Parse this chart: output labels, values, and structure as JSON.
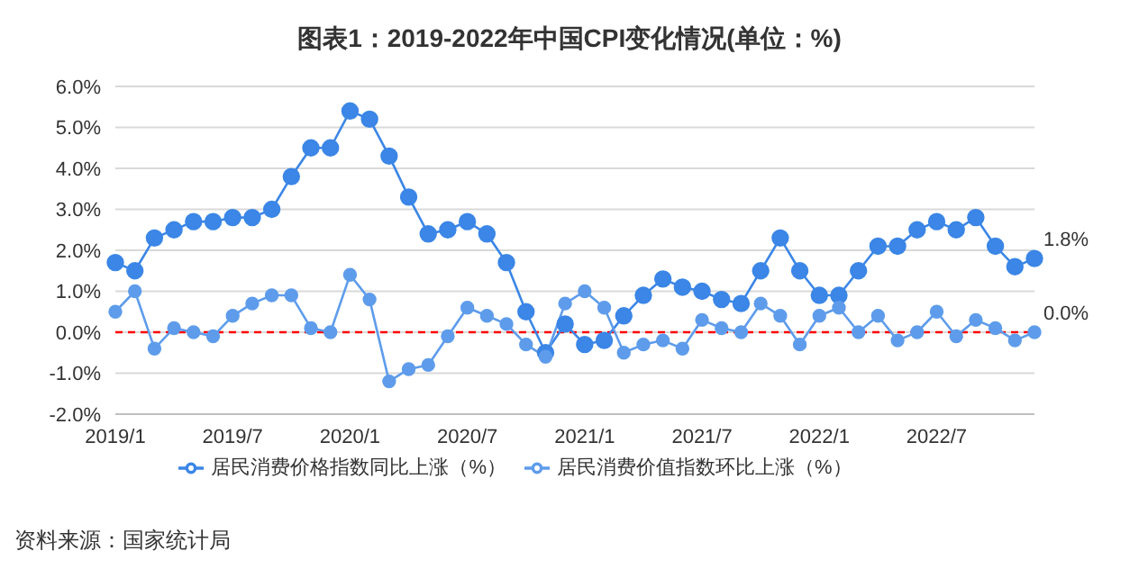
{
  "chart_data": {
    "type": "line",
    "title": "图表1：2019-2022年中国CPI变化情况(单位：%)",
    "categories": [
      "2019/1",
      null,
      null,
      null,
      null,
      null,
      "2019/7",
      null,
      null,
      null,
      null,
      null,
      "2020/1",
      null,
      null,
      null,
      null,
      null,
      "2020/7",
      null,
      null,
      null,
      null,
      null,
      "2021/1",
      null,
      null,
      null,
      null,
      null,
      "2021/7",
      null,
      null,
      null,
      null,
      null,
      "2022/1",
      null,
      null,
      null,
      null,
      null,
      "2022/7",
      null,
      null,
      null,
      null,
      null
    ],
    "series": [
      {
        "name": "居民消费价格指数同比上涨（%）",
        "color": "#3b86e6",
        "values": [
          1.7,
          1.5,
          2.3,
          2.5,
          2.7,
          2.7,
          2.8,
          2.8,
          3.0,
          3.8,
          4.5,
          4.5,
          5.4,
          5.2,
          4.3,
          3.3,
          2.4,
          2.5,
          2.7,
          2.4,
          1.7,
          0.5,
          -0.5,
          0.2,
          -0.3,
          -0.2,
          0.4,
          0.9,
          1.3,
          1.1,
          1.0,
          0.8,
          0.7,
          1.5,
          2.3,
          1.5,
          0.9,
          0.9,
          1.5,
          2.1,
          2.1,
          2.5,
          2.7,
          2.5,
          2.8,
          2.1,
          1.6,
          1.8
        ],
        "value_labels": [
          null,
          null,
          null,
          null,
          null,
          null,
          null,
          null,
          null,
          null,
          null,
          null,
          null,
          null,
          null,
          null,
          null,
          null,
          null,
          null,
          null,
          null,
          null,
          null,
          null,
          null,
          null,
          null,
          null,
          null,
          null,
          null,
          null,
          null,
          null,
          null,
          null,
          null,
          null,
          null,
          null,
          null,
          null,
          null,
          null,
          null,
          null,
          "1.8%"
        ]
      },
      {
        "name": "居民消费价值指数环比上涨（%）",
        "color": "#5e9ceb",
        "values": [
          0.5,
          1.0,
          -0.4,
          0.1,
          0.0,
          -0.1,
          0.4,
          0.7,
          0.9,
          0.9,
          0.1,
          0.0,
          1.4,
          0.8,
          -1.2,
          -0.9,
          -0.8,
          -0.1,
          0.6,
          0.4,
          0.2,
          -0.3,
          -0.6,
          0.7,
          1.0,
          0.6,
          -0.5,
          -0.3,
          -0.2,
          -0.4,
          0.3,
          0.1,
          0.0,
          0.7,
          0.4,
          -0.3,
          0.4,
          0.6,
          0.0,
          0.4,
          -0.2,
          0.0,
          0.5,
          -0.1,
          0.3,
          0.1,
          -0.2,
          0.0
        ],
        "value_labels": [
          null,
          null,
          null,
          null,
          null,
          null,
          null,
          null,
          null,
          null,
          null,
          null,
          null,
          null,
          null,
          null,
          null,
          null,
          null,
          null,
          null,
          null,
          null,
          null,
          null,
          null,
          null,
          null,
          null,
          null,
          null,
          null,
          null,
          null,
          null,
          null,
          null,
          null,
          null,
          null,
          null,
          null,
          null,
          null,
          null,
          null,
          null,
          "0.0%"
        ]
      }
    ],
    "ylim": [
      -2,
      6
    ],
    "yticks": [
      {
        "value": -2,
        "label": "-2.0%"
      },
      {
        "value": -1,
        "label": "-1.0%"
      },
      {
        "value": 0,
        "label": "0.0%"
      },
      {
        "value": 1,
        "label": "1.0%"
      },
      {
        "value": 2,
        "label": "2.0%"
      },
      {
        "value": 3,
        "label": "3.0%"
      },
      {
        "value": 4,
        "label": "4.0%"
      },
      {
        "value": 5,
        "label": "5.0%"
      },
      {
        "value": 6,
        "label": "6.0%"
      }
    ],
    "grid": "y",
    "legend": "bottom",
    "marker": "circle",
    "line_style": "solid",
    "ref_lines": [
      {
        "axis": "y",
        "value": 0,
        "color": "#ff0000",
        "line_style": "dashed"
      }
    ],
    "annotations": [
      "资料来源：国家统计局"
    ]
  }
}
